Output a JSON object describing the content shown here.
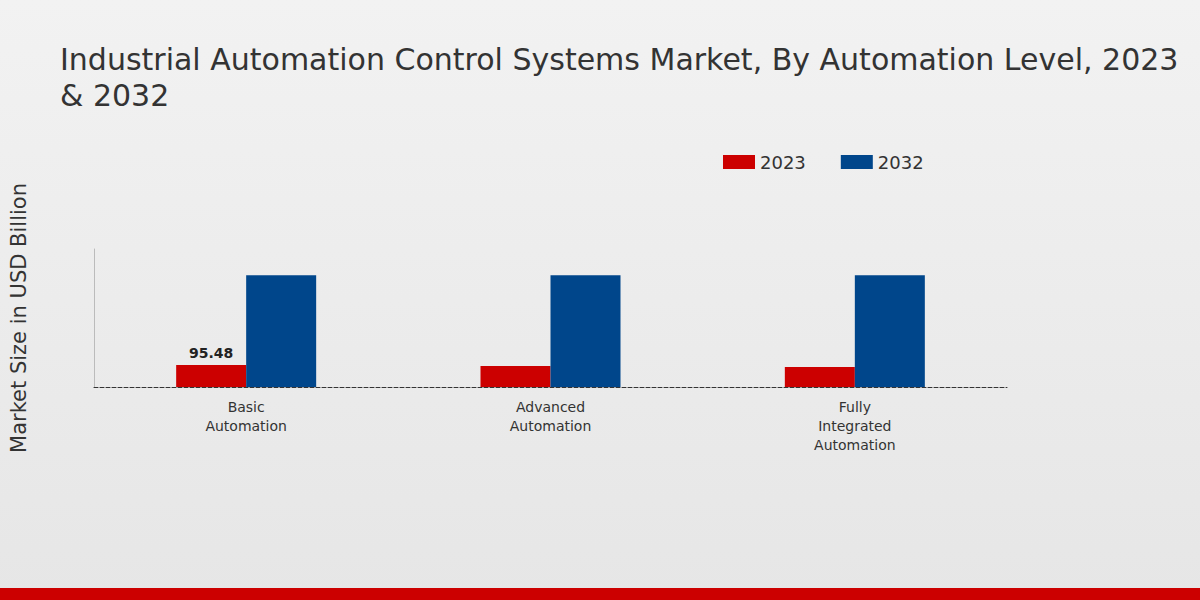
{
  "chart_data": {
    "type": "bar",
    "title": "Industrial Automation Control Systems Market, By Automation Level, 2023 & 2032",
    "y_label": "Market Size in USD Billion",
    "categories": [
      "Basic\nAutomation",
      "Advanced\nAutomation",
      "Fully\nIntegrated\nAutomation"
    ],
    "series": [
      {
        "name": "2023",
        "color": "#cc0000",
        "values": [
          95.48,
          91.0,
          87.0
        ],
        "value_labels": [
          "95.48",
          null,
          null
        ],
        "data_labels": true
      },
      {
        "name": "2032",
        "color": "#00468b",
        "values": [
          486.0,
          486.0,
          486.0
        ]
      }
    ],
    "ylim": [
      0,
      600
    ],
    "yticks": [],
    "grid": false,
    "legend": "top",
    "tick_labels": "x"
  }
}
